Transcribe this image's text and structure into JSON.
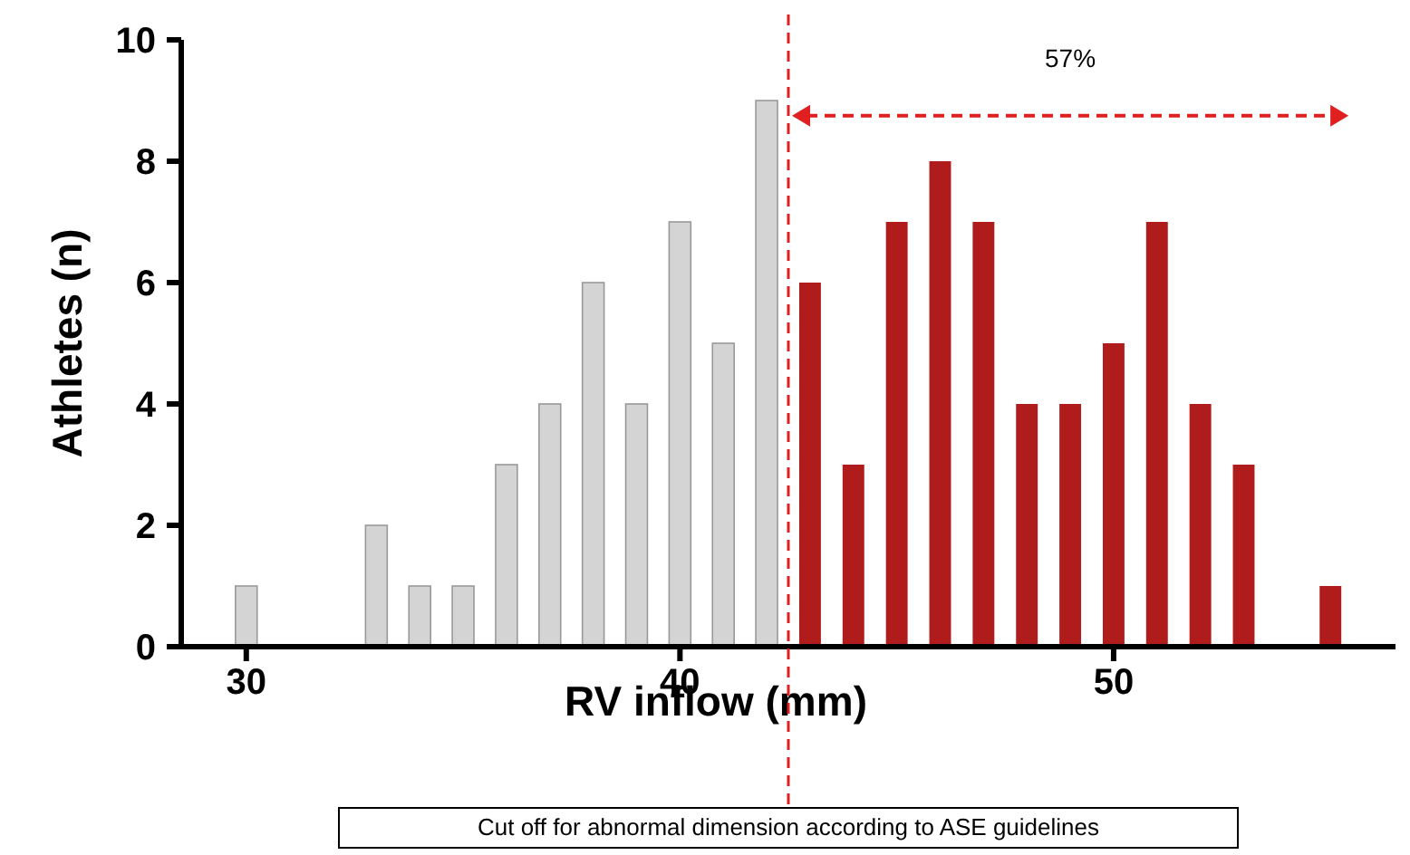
{
  "chart_data": {
    "type": "histogram",
    "xlabel": "RV inflow (mm)",
    "ylabel": "Athletes (n)",
    "bins": [
      29.5,
      30.5,
      31.5,
      32.5,
      33.5,
      34.5,
      35.5,
      36.5,
      37.5,
      38.5,
      39.5,
      40.5,
      41.5,
      42.5,
      43.5,
      44.5,
      45.5,
      46.5,
      47.5,
      48.5,
      49.5,
      50.5,
      51.5,
      52.5,
      53.5,
      54.5,
      55.5
    ],
    "values": [
      1,
      0,
      0,
      2,
      1,
      1,
      3,
      4,
      6,
      4,
      7,
      5,
      9,
      6,
      3,
      7,
      8,
      7,
      4,
      4,
      5,
      7,
      4,
      3,
      0,
      1
    ],
    "colors": [
      "#d4d4d4",
      "#d4d4d4",
      "#d4d4d4",
      "#d4d4d4",
      "#d4d4d4",
      "#d4d4d4",
      "#d4d4d4",
      "#d4d4d4",
      "#d4d4d4",
      "#d4d4d4",
      "#d4d4d4",
      "#d4d4d4",
      "#d4d4d4",
      "#b01c1c",
      "#b01c1c",
      "#b01c1c",
      "#b01c1c",
      "#b01c1c",
      "#b01c1c",
      "#b01c1c",
      "#b01c1c",
      "#b01c1c",
      "#b01c1c",
      "#b01c1c",
      "#b01c1c",
      "#b01c1c"
    ],
    "xlim": [
      28.5,
      56.5
    ],
    "xticks": [
      30,
      40,
      50
    ],
    "ylim": [
      0,
      10
    ],
    "yticks": [
      0,
      2,
      4,
      6,
      8,
      10
    ],
    "ref_lines": [
      {
        "axis": "x",
        "value": 42.5,
        "label": "Cut off for abnormal dimension according to ASE guidelines",
        "color": "#e02020",
        "line_style": "dashed"
      }
    ],
    "annotations": [
      "57%"
    ]
  }
}
